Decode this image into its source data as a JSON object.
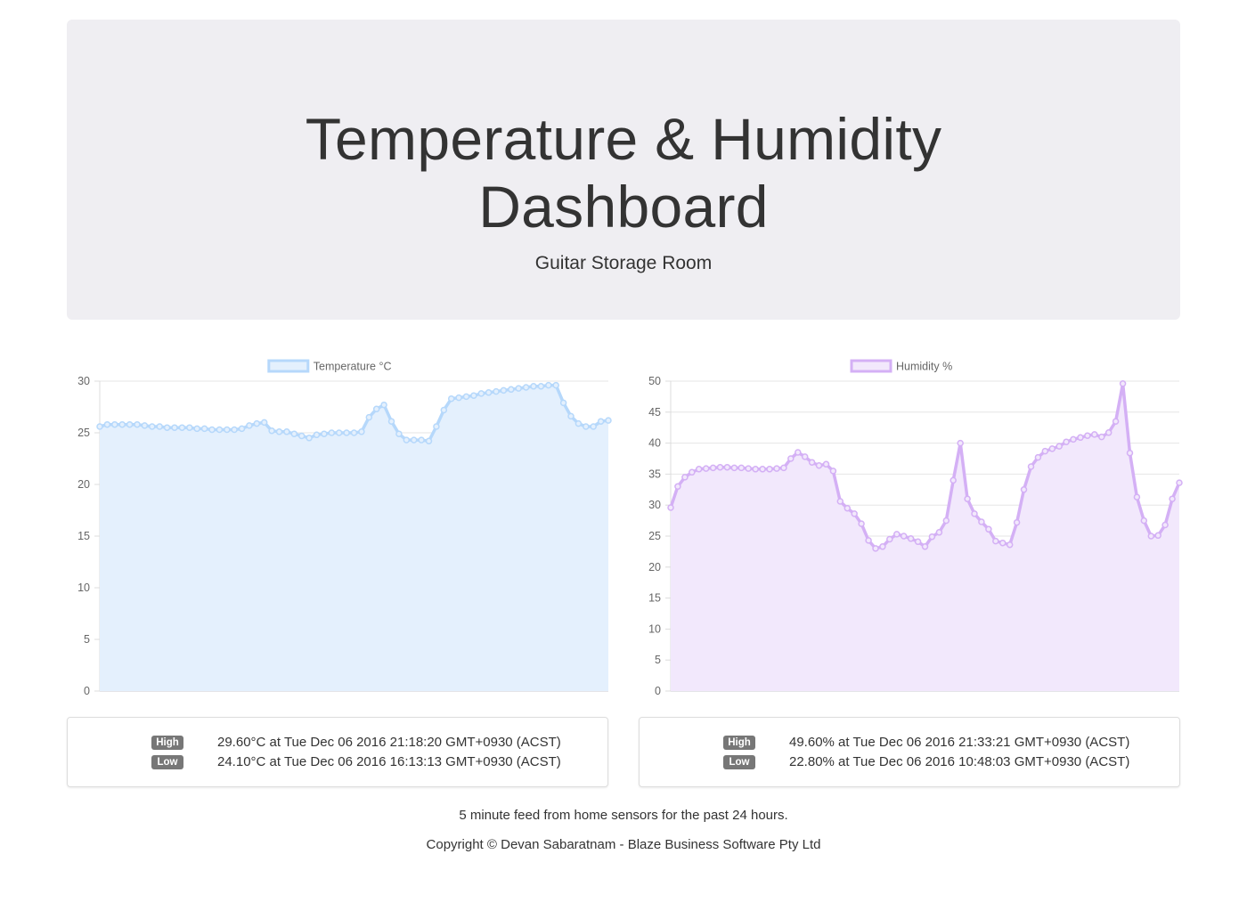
{
  "header": {
    "title_line1": "Temperature & Humidity",
    "title_line2": "Dashboard",
    "subtitle": "Guitar Storage Room"
  },
  "colors": {
    "temperature_line": "#b6d8fb",
    "temperature_fill": "#e4f0fd",
    "humidity_line": "#d4b0f5",
    "humidity_fill": "#f2e8fc",
    "badge": "#777777"
  },
  "chart_data": [
    {
      "type": "line",
      "fill": "area",
      "legend": "top",
      "grid": true,
      "series": [
        {
          "name": "Temperature °C",
          "values": [
            25.6,
            25.8,
            25.8,
            25.8,
            25.8,
            25.8,
            25.7,
            25.6,
            25.6,
            25.5,
            25.5,
            25.5,
            25.5,
            25.4,
            25.4,
            25.3,
            25.3,
            25.3,
            25.3,
            25.4,
            25.7,
            25.9,
            26.0,
            25.2,
            25.1,
            25.1,
            24.9,
            24.7,
            24.5,
            24.8,
            24.9,
            25.0,
            25.0,
            25.0,
            25.0,
            25.1,
            26.5,
            27.3,
            27.7,
            26.1,
            24.9,
            24.3,
            24.3,
            24.3,
            24.2,
            25.6,
            27.2,
            28.3,
            28.4,
            28.5,
            28.6,
            28.8,
            28.9,
            29.0,
            29.1,
            29.2,
            29.3,
            29.4,
            29.5,
            29.5,
            29.6,
            29.6,
            27.9,
            26.6,
            25.9,
            25.6,
            25.6,
            26.1,
            26.2
          ]
        }
      ],
      "ylim": [
        0,
        30
      ],
      "yticks": [
        0,
        5,
        10,
        15,
        20,
        25,
        30
      ]
    },
    {
      "type": "line",
      "fill": "area",
      "legend": "top",
      "grid": true,
      "series": [
        {
          "name": "Humidity %",
          "values": [
            29.6,
            33.0,
            34.5,
            35.3,
            35.8,
            35.9,
            36.0,
            36.1,
            36.1,
            36.0,
            36.0,
            35.9,
            35.8,
            35.8,
            35.8,
            35.9,
            36.0,
            37.5,
            38.5,
            37.8,
            36.9,
            36.4,
            36.6,
            35.5,
            30.6,
            29.5,
            28.6,
            27.0,
            24.3,
            23.0,
            23.3,
            24.5,
            25.3,
            25.0,
            24.6,
            24.1,
            23.3,
            24.9,
            25.6,
            27.5,
            34.0,
            40.0,
            31.0,
            28.6,
            27.3,
            26.1,
            24.2,
            23.9,
            23.6,
            27.2,
            32.5,
            36.2,
            37.7,
            38.7,
            39.1,
            39.5,
            40.2,
            40.6,
            40.9,
            41.2,
            41.4,
            41.0,
            41.7,
            43.5,
            49.6,
            38.4,
            31.3,
            27.5,
            25.0,
            25.1,
            26.8,
            31.0,
            33.6
          ]
        }
      ],
      "ylim": [
        0,
        50
      ],
      "yticks": [
        0,
        5,
        10,
        15,
        20,
        25,
        30,
        35,
        40,
        45,
        50
      ]
    }
  ],
  "temp_stats": {
    "high_label": "High",
    "high_text": "29.60°C at Tue Dec 06 2016 21:18:20 GMT+0930 (ACST)",
    "low_label": "Low",
    "low_text": "24.10°C at Tue Dec 06 2016 16:13:13 GMT+0930 (ACST)"
  },
  "hum_stats": {
    "high_label": "High",
    "high_text": "49.60% at Tue Dec 06 2016 21:33:21 GMT+0930 (ACST)",
    "low_label": "Low",
    "low_text": "22.80% at Tue Dec 06 2016 10:48:03 GMT+0930 (ACST)"
  },
  "footer": {
    "feed": "5 minute feed from home sensors for the past 24 hours.",
    "copyright": "Copyright © Devan Sabaratnam - Blaze Business Software Pty Ltd"
  }
}
